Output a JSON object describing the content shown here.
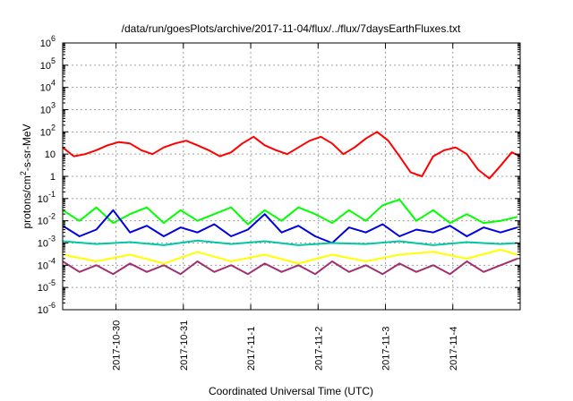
{
  "chart_data": {
    "type": "line",
    "title": "/data/run/goesPlots/archive/2017-11-04/flux/../flux/7daysEarthFluxes.txt",
    "xlabel": "Coordinated Universal Time (UTC)",
    "ylabel_parts": {
      "base": "protons/cm",
      "sup": "2",
      "rest": "-s-sr-MeV"
    },
    "y_scale": "log",
    "ylim": [
      1e-06,
      1000000.0
    ],
    "y_ticks": [
      {
        "base": "10",
        "exp": "-6"
      },
      {
        "base": "10",
        "exp": "-5"
      },
      {
        "base": "10",
        "exp": "-4"
      },
      {
        "base": "10",
        "exp": "-3"
      },
      {
        "base": "10",
        "exp": "-2"
      },
      {
        "base": "10",
        "exp": "-1"
      },
      {
        "base": "1",
        "exp": ""
      },
      {
        "base": "10",
        "exp": ""
      },
      {
        "base": "10",
        "exp": "2"
      },
      {
        "base": "10",
        "exp": "3"
      },
      {
        "base": "10",
        "exp": "4"
      },
      {
        "base": "10",
        "exp": "5"
      },
      {
        "base": "10",
        "exp": "6"
      }
    ],
    "xlim": [
      "2017-10-29T05:00",
      "2017-11-05T00:00"
    ],
    "x_ticks": [
      "2017-10-30",
      "2017-10-31",
      "2017-11-1",
      "2017-11-2",
      "2017-11-3",
      "2017-11-4"
    ],
    "grid": true,
    "legend": "none",
    "series": [
      {
        "color": "#ff0000",
        "x": [
          "2017-10-29T05:00",
          "2017-10-29T09:00",
          "2017-10-29T13:00",
          "2017-10-29T17:00",
          "2017-10-29T21:00",
          "2017-10-30T01:00",
          "2017-10-30T05:00",
          "2017-10-30T09:00",
          "2017-10-30T13:00",
          "2017-10-30T17:00",
          "2017-10-30T21:00",
          "2017-10-31T01:00",
          "2017-10-31T05:00",
          "2017-10-31T09:00",
          "2017-10-31T13:00",
          "2017-10-31T17:00",
          "2017-10-31T21:00",
          "2017-11-01T01:00",
          "2017-11-01T05:00",
          "2017-11-01T09:00",
          "2017-11-01T13:00",
          "2017-11-01T17:00",
          "2017-11-01T21:00",
          "2017-11-02T01:00",
          "2017-11-02T05:00",
          "2017-11-02T09:00",
          "2017-11-02T13:00",
          "2017-11-02T17:00",
          "2017-11-02T21:00",
          "2017-11-03T01:00",
          "2017-11-03T05:00",
          "2017-11-03T09:00",
          "2017-11-03T13:00",
          "2017-11-03T17:00",
          "2017-11-03T21:00",
          "2017-11-04T01:00",
          "2017-11-04T05:00",
          "2017-11-04T09:00",
          "2017-11-04T13:00",
          "2017-11-04T17:00",
          "2017-11-04T21:00",
          "2017-11-05T00:00"
        ],
        "values": [
          20,
          8,
          10,
          15,
          25,
          35,
          30,
          15,
          10,
          20,
          30,
          40,
          25,
          15,
          8,
          12,
          30,
          60,
          25,
          15,
          10,
          20,
          40,
          60,
          30,
          10,
          20,
          50,
          100,
          40,
          8,
          1.5,
          1,
          8,
          15,
          20,
          10,
          2,
          0.8,
          3,
          12,
          8
        ]
      },
      {
        "color": "#00ff00",
        "x": [
          "2017-10-29T05:00",
          "2017-10-29T11:00",
          "2017-10-29T17:00",
          "2017-10-29T23:00",
          "2017-10-30T05:00",
          "2017-10-30T11:00",
          "2017-10-30T17:00",
          "2017-10-30T23:00",
          "2017-10-31T05:00",
          "2017-10-31T11:00",
          "2017-10-31T17:00",
          "2017-10-31T23:00",
          "2017-11-01T05:00",
          "2017-11-01T11:00",
          "2017-11-01T17:00",
          "2017-11-01T23:00",
          "2017-11-02T05:00",
          "2017-11-02T11:00",
          "2017-11-02T17:00",
          "2017-11-02T23:00",
          "2017-11-03T05:00",
          "2017-11-03T11:00",
          "2017-11-03T17:00",
          "2017-11-03T23:00",
          "2017-11-04T05:00",
          "2017-11-04T11:00",
          "2017-11-04T17:00",
          "2017-11-04T23:00"
        ],
        "values": [
          0.03,
          0.01,
          0.04,
          0.008,
          0.02,
          0.04,
          0.008,
          0.03,
          0.01,
          0.02,
          0.04,
          0.007,
          0.03,
          0.01,
          0.04,
          0.02,
          0.008,
          0.03,
          0.01,
          0.05,
          0.09,
          0.01,
          0.03,
          0.008,
          0.02,
          0.008,
          0.01,
          0.015
        ]
      },
      {
        "color": "#0000e0",
        "x": [
          "2017-10-29T05:00",
          "2017-10-29T11:00",
          "2017-10-29T17:00",
          "2017-10-29T23:00",
          "2017-10-30T05:00",
          "2017-10-30T11:00",
          "2017-10-30T17:00",
          "2017-10-30T23:00",
          "2017-10-31T05:00",
          "2017-10-31T11:00",
          "2017-10-31T17:00",
          "2017-10-31T23:00",
          "2017-11-01T05:00",
          "2017-11-01T11:00",
          "2017-11-01T17:00",
          "2017-11-01T23:00",
          "2017-11-02T05:00",
          "2017-11-02T11:00",
          "2017-11-02T17:00",
          "2017-11-02T23:00",
          "2017-11-03T05:00",
          "2017-11-03T11:00",
          "2017-11-03T17:00",
          "2017-11-03T23:00",
          "2017-11-04T05:00",
          "2017-11-04T11:00",
          "2017-11-04T17:00",
          "2017-11-04T23:00"
        ],
        "values": [
          0.006,
          0.002,
          0.004,
          0.03,
          0.003,
          0.006,
          0.002,
          0.005,
          0.003,
          0.007,
          0.002,
          0.004,
          0.02,
          0.003,
          0.006,
          0.002,
          0.001,
          0.005,
          0.003,
          0.007,
          0.002,
          0.004,
          0.003,
          0.006,
          0.002,
          0.005,
          0.003,
          0.005
        ]
      },
      {
        "color": "#00c8a0",
        "x": [
          "2017-10-29T05:00",
          "2017-10-29T17:00",
          "2017-10-30T05:00",
          "2017-10-30T17:00",
          "2017-10-31T05:00",
          "2017-10-31T17:00",
          "2017-11-01T05:00",
          "2017-11-01T17:00",
          "2017-11-02T05:00",
          "2017-11-02T17:00",
          "2017-11-03T05:00",
          "2017-11-03T17:00",
          "2017-11-04T05:00",
          "2017-11-04T17:00",
          "2017-11-04T23:00"
        ],
        "values": [
          0.0012,
          0.0009,
          0.0011,
          0.0008,
          0.0013,
          0.0009,
          0.0012,
          0.0008,
          0.001,
          0.0009,
          0.0012,
          0.0008,
          0.0011,
          0.0009,
          0.001
        ]
      },
      {
        "color": "#ffff00",
        "x": [
          "2017-10-29T05:00",
          "2017-10-29T17:00",
          "2017-10-30T05:00",
          "2017-10-30T17:00",
          "2017-10-31T05:00",
          "2017-10-31T17:00",
          "2017-11-01T05:00",
          "2017-11-01T17:00",
          "2017-11-02T05:00",
          "2017-11-02T17:00",
          "2017-11-03T05:00",
          "2017-11-03T17:00",
          "2017-11-04T05:00",
          "2017-11-04T17:00",
          "2017-11-04T23:00"
        ],
        "values": [
          0.0003,
          0.00015,
          0.0003,
          0.00012,
          0.0004,
          0.00015,
          0.0003,
          0.00012,
          0.0003,
          0.00015,
          0.0003,
          0.0004,
          0.0002,
          0.0005,
          0.0003
        ]
      },
      {
        "color": "#a03070",
        "x": [
          "2017-10-29T05:00",
          "2017-10-29T11:00",
          "2017-10-29T17:00",
          "2017-10-29T23:00",
          "2017-10-30T05:00",
          "2017-10-30T11:00",
          "2017-10-30T17:00",
          "2017-10-30T23:00",
          "2017-10-31T05:00",
          "2017-10-31T11:00",
          "2017-10-31T17:00",
          "2017-10-31T23:00",
          "2017-11-01T05:00",
          "2017-11-01T11:00",
          "2017-11-01T17:00",
          "2017-11-01T23:00",
          "2017-11-02T05:00",
          "2017-11-02T11:00",
          "2017-11-02T17:00",
          "2017-11-02T23:00",
          "2017-11-03T05:00",
          "2017-11-03T11:00",
          "2017-11-03T17:00",
          "2017-11-03T23:00",
          "2017-11-04T05:00",
          "2017-11-04T11:00",
          "2017-11-04T17:00",
          "2017-11-04T23:00"
        ],
        "values": [
          0.00015,
          5e-05,
          0.0001,
          4e-05,
          0.00012,
          5e-05,
          0.0001,
          4e-05,
          0.00015,
          5e-05,
          0.0001,
          4e-05,
          0.00012,
          5e-05,
          0.0001,
          4e-05,
          0.00015,
          5e-05,
          0.0001,
          4e-05,
          0.00012,
          5e-05,
          0.0001,
          4e-05,
          0.00015,
          5e-05,
          0.0001,
          0.0002
        ]
      }
    ]
  }
}
